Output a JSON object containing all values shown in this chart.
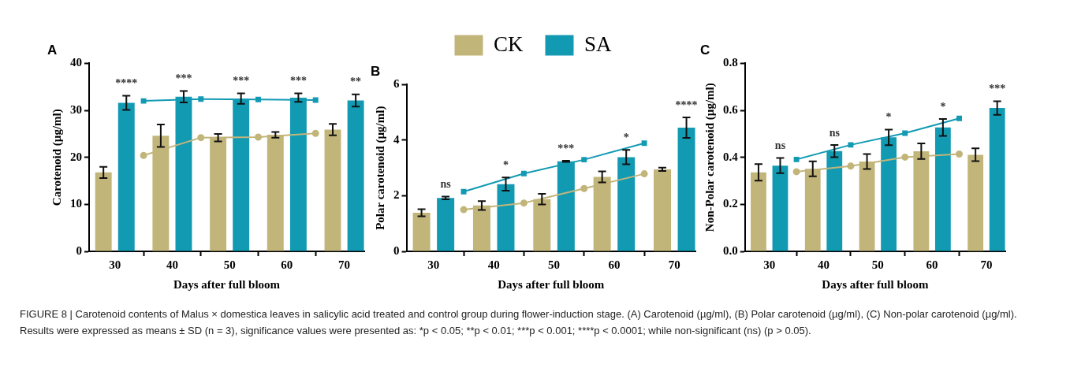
{
  "chart_data": [
    {
      "type": "bar",
      "title": "A",
      "xlabel": "Days after full bloom",
      "ylabel": "Carotenoid (µg/ml)",
      "xlim": [
        25.5,
        73.5
      ],
      "xticks": [
        30,
        40,
        50,
        60,
        70
      ],
      "ylim": [
        0,
        40
      ],
      "yticks": [
        0,
        10,
        20,
        30,
        40
      ],
      "series": [
        {
          "color": "#c2b57a",
          "x": [
            28,
            38,
            48,
            58,
            68
          ],
          "values": [
            16.8,
            24.6,
            24.2,
            24.8,
            25.9
          ],
          "errors": [
            1.2,
            2.4,
            0.8,
            0.6,
            1.2
          ]
        },
        {
          "color": "#129ab3",
          "x": [
            32,
            42,
            52,
            62,
            72
          ],
          "values": [
            31.6,
            32.9,
            32.5,
            32.7,
            32.1
          ],
          "errors": [
            1.5,
            1.2,
            1.1,
            0.9,
            1.3
          ]
        },
        {
          "type": "line",
          "color": "#c2b57a",
          "marker": "circle",
          "x": [
            35,
            45,
            55,
            65
          ],
          "values": [
            20.4,
            24.2,
            24.3,
            25.1
          ]
        },
        {
          "type": "line",
          "color": "#129ab3",
          "marker": "square",
          "x": [
            35,
            45,
            55,
            65
          ],
          "values": [
            32.0,
            32.4,
            32.3,
            32.2
          ]
        }
      ],
      "annotations": [
        {
          "text": "****",
          "x": 32,
          "y": 31.6
        },
        {
          "text": "***",
          "x": 42,
          "y": 32.9
        },
        {
          "text": "***",
          "x": 52,
          "y": 32.5
        },
        {
          "text": "***",
          "x": 62,
          "y": 32.7
        },
        {
          "text": "**",
          "x": 72,
          "y": 32.1
        },
        "FIGURE 8 | Carotenoid contents of Malus × domestica leaves in salicylic acid treated and control group during flower-induction stage. (A) Carotenoid (µg/ml), (B) Polar carotenoid (µg/ml), (C) Non-polar carotenoid (µg/ml). Results were expressed as means ± SD (n = 3), significance values were presented as: *p < 0.05; **p < 0.01; ***p < 0.001; ****p < 0.0001; while non-significant (ns) (p > 0.05)."
      ]
    },
    {
      "type": "bar",
      "title": "B",
      "xlabel": "Days after full bloom",
      "ylabel": "Polar carotenoid (µg/ml)",
      "xlim": [
        25.5,
        73.5
      ],
      "xticks": [
        30,
        40,
        50,
        60,
        70
      ],
      "ylim": [
        0,
        6
      ],
      "yticks": [
        0,
        2,
        4,
        6
      ],
      "legend": "top",
      "series": [
        {
          "name": "CK",
          "color": "#c2b57a",
          "x": [
            28,
            38,
            48,
            58,
            68
          ],
          "values": [
            1.39,
            1.65,
            1.88,
            2.68,
            2.95
          ],
          "errors": [
            0.13,
            0.16,
            0.19,
            0.2,
            0.06
          ]
        },
        {
          "name": "SA",
          "color": "#129ab3",
          "x": [
            32,
            42,
            52,
            62,
            72
          ],
          "values": [
            1.92,
            2.42,
            3.24,
            3.39,
            4.45
          ],
          "errors": [
            0.05,
            0.24,
            0.02,
            0.26,
            0.37
          ]
        },
        {
          "type": "line",
          "color": "#c2b57a",
          "marker": "circle",
          "x": [
            35,
            45,
            55,
            65
          ],
          "values": [
            1.5,
            1.74,
            2.26,
            2.79
          ]
        },
        {
          "type": "line",
          "color": "#129ab3",
          "marker": "square",
          "x": [
            35,
            45,
            55,
            65
          ],
          "values": [
            2.15,
            2.8,
            3.3,
            3.89
          ]
        }
      ],
      "annotations": [
        {
          "text": "ns",
          "x": 32,
          "y": 1.92
        },
        {
          "text": "*",
          "x": 42,
          "y": 2.42
        },
        {
          "text": "***",
          "x": 52,
          "y": 3.24
        },
        {
          "text": "*",
          "x": 62,
          "y": 3.39
        },
        {
          "text": "****",
          "x": 72,
          "y": 4.45
        }
      ]
    },
    {
      "type": "bar",
      "title": "C",
      "xlabel": "Days after full bloom",
      "ylabel": "Non-Polar carotenoid (µg/ml)",
      "xlim": [
        25.5,
        73.5
      ],
      "xticks": [
        30,
        40,
        50,
        60,
        70
      ],
      "ylim": [
        0,
        0.8
      ],
      "yticks": [
        {
          "value": 0,
          "label": "0.0"
        },
        0.2,
        0.4,
        0.6,
        0.8
      ],
      "series": [
        {
          "color": "#c2b57a",
          "x": [
            28,
            38,
            48,
            58,
            68
          ],
          "values": [
            0.336,
            0.351,
            0.382,
            0.426,
            0.411
          ],
          "errors": [
            0.035,
            0.032,
            0.032,
            0.033,
            0.027
          ]
        },
        {
          "color": "#129ab3",
          "x": [
            32,
            42,
            52,
            62,
            72
          ],
          "values": [
            0.365,
            0.427,
            0.485,
            0.527,
            0.61
          ],
          "errors": [
            0.032,
            0.026,
            0.033,
            0.036,
            0.029
          ]
        },
        {
          "type": "line",
          "color": "#c2b57a",
          "marker": "circle",
          "x": [
            35,
            45,
            55,
            65
          ],
          "values": [
            0.339,
            0.363,
            0.401,
            0.414
          ]
        },
        {
          "type": "line",
          "color": "#129ab3",
          "marker": "square",
          "x": [
            35,
            45,
            55,
            65
          ],
          "values": [
            0.391,
            0.453,
            0.503,
            0.566
          ]
        }
      ],
      "annotations": [
        {
          "text": "ns",
          "x": 32,
          "y": 0.365
        },
        {
          "text": "ns",
          "x": 42,
          "y": 0.427
        },
        {
          "text": "*",
          "x": 52,
          "y": 0.485
        },
        {
          "text": "*",
          "x": 62,
          "y": 0.527
        },
        {
          "text": "***",
          "x": 72,
          "y": 0.61
        }
      ]
    }
  ]
}
